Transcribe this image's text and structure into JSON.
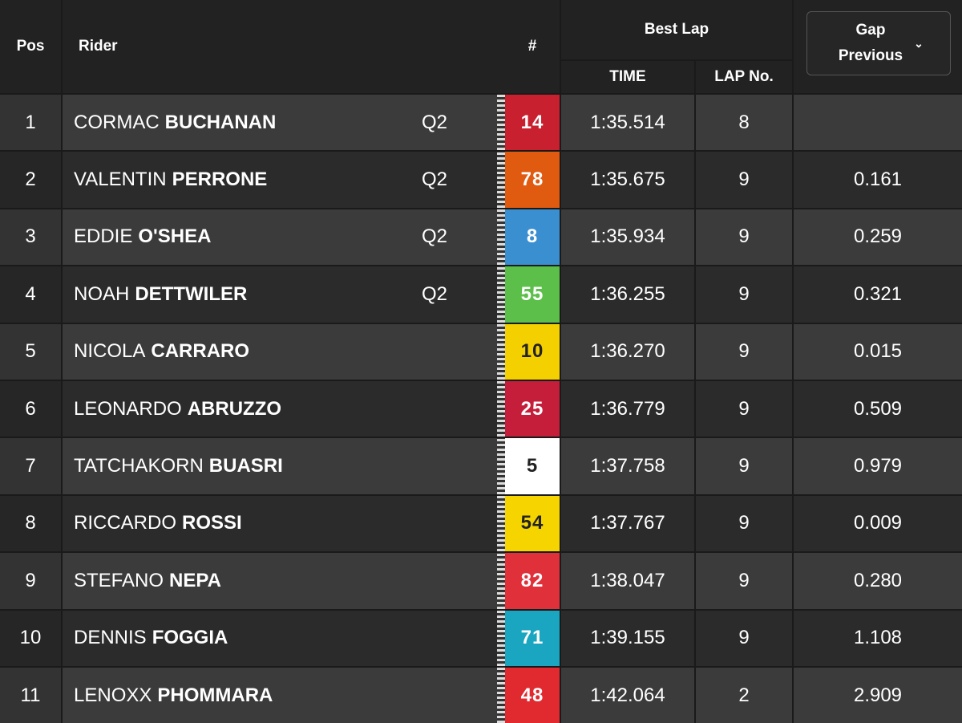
{
  "header": {
    "pos": "Pos",
    "rider": "Rider",
    "number": "#",
    "best_lap": "Best Lap",
    "time": "TIME",
    "lap_no": "LAP No.",
    "gap": "Gap Previous"
  },
  "rows": [
    {
      "pos": 1,
      "first": "CORMAC",
      "last": "BUCHANAN",
      "tag": "Q2",
      "number": 14,
      "color": "#c8202f",
      "time": "1:35.514",
      "lap": 8
    },
    {
      "pos": 2,
      "first": "VALENTIN",
      "last": "PERRONE",
      "tag": "Q2",
      "number": 78,
      "color": "#e05a10",
      "time": "1:35.675",
      "lap": 9,
      "gap": "0.161"
    },
    {
      "pos": 3,
      "first": "EDDIE",
      "last": "O'SHEA",
      "tag": "Q2",
      "number": 8,
      "color": "#3a8fd0",
      "time": "1:35.934",
      "lap": 9,
      "gap": "0.259"
    },
    {
      "pos": 4,
      "first": "NOAH",
      "last": "DETTWILER",
      "tag": "Q2",
      "number": 55,
      "color": "#5cbf4a",
      "time": "1:36.255",
      "lap": 9,
      "gap": "0.321"
    },
    {
      "pos": 5,
      "first": "NICOLA",
      "last": "CARRARO",
      "number": 10,
      "color": "#f5d000",
      "time": "1:36.270",
      "lap": 9,
      "gap": "0.015"
    },
    {
      "pos": 6,
      "first": "LEONARDO",
      "last": "ABRUZZO",
      "number": 25,
      "color": "#c41e3a",
      "time": "1:36.779",
      "lap": 9,
      "gap": "0.509"
    },
    {
      "pos": 7,
      "first": "TATCHAKORN",
      "last": "BUASRI",
      "number": 5,
      "color": "#ffffff",
      "time": "1:37.758",
      "lap": 9,
      "gap": "0.979"
    },
    {
      "pos": 8,
      "first": "RICCARDO",
      "last": "ROSSI",
      "number": 54,
      "color": "#f5d400",
      "time": "1:37.767",
      "lap": 9,
      "gap": "0.009"
    },
    {
      "pos": 9,
      "first": "STEFANO",
      "last": "NEPA",
      "number": 82,
      "color": "#e0303a",
      "time": "1:38.047",
      "lap": 9,
      "gap": "0.280"
    },
    {
      "pos": 10,
      "first": "DENNIS",
      "last": "FOGGIA",
      "number": 71,
      "color": "#1aa6c0",
      "time": "1:39.155",
      "lap": 9,
      "gap": "1.108"
    },
    {
      "pos": 11,
      "first": "LENOXX",
      "last": "PHOMMARA",
      "number": 48,
      "color": "#e02a30",
      "time": "1:42.064",
      "lap": 2,
      "gap": "2.909"
    }
  ]
}
